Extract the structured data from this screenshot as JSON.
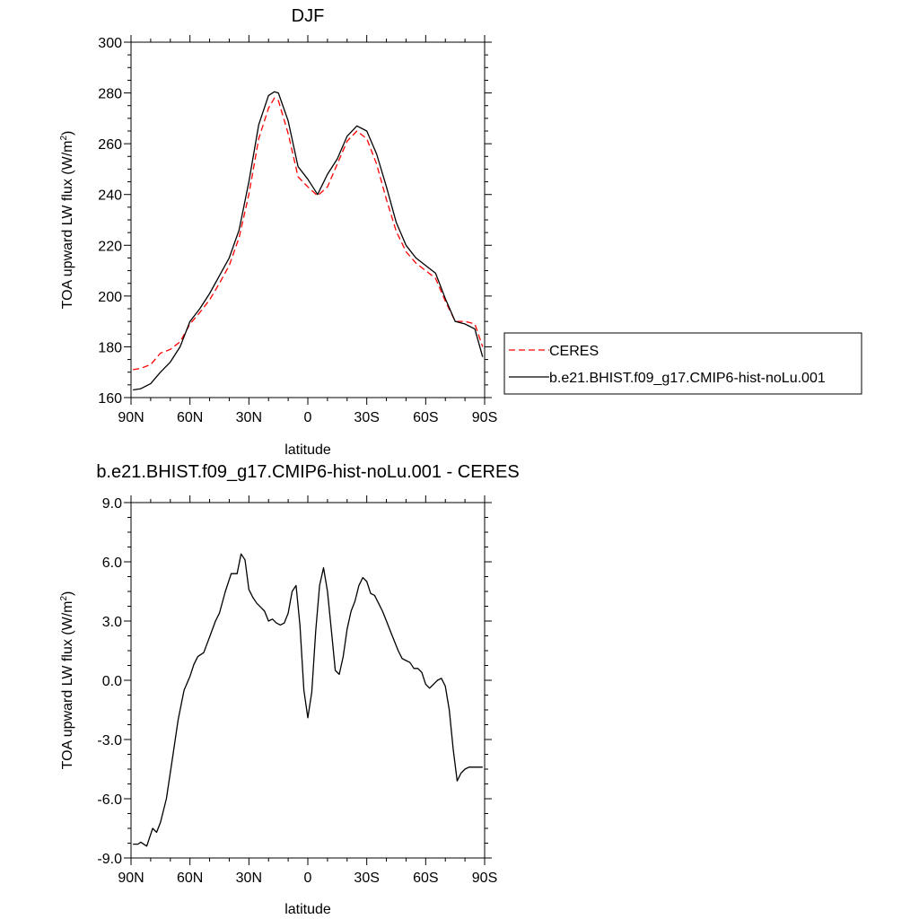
{
  "chart_data": [
    {
      "type": "line",
      "title": "DJF",
      "xlabel": "latitude",
      "ylabel": "TOA upward LW flux (W/m²)",
      "ylabel_parts": {
        "main": "TOA upward LW flux (W/m",
        "sup": "2",
        "close": ")"
      },
      "xlim": [
        90,
        -90
      ],
      "ylim": [
        160,
        300
      ],
      "x_ticks": [
        90,
        60,
        30,
        0,
        -30,
        -60,
        -90
      ],
      "x_tick_labels": [
        "90N",
        "60N",
        "30N",
        "0",
        "30S",
        "60S",
        "90S"
      ],
      "y_ticks": [
        160,
        180,
        200,
        220,
        240,
        260,
        280,
        300
      ],
      "y_tick_labels": [
        "160",
        "180",
        "200",
        "220",
        "240",
        "260",
        "280",
        "300"
      ],
      "legend_position": "right",
      "series": [
        {
          "name": "CERES",
          "color": "#ff0000",
          "dash": "dashed",
          "x": [
            89,
            85,
            80,
            75,
            70,
            65,
            60,
            55,
            50,
            45,
            40,
            35,
            30,
            25,
            20,
            17,
            15,
            10,
            5,
            0,
            -5,
            -10,
            -15,
            -20,
            -25,
            -30,
            -35,
            -40,
            -45,
            -50,
            -55,
            -60,
            -65,
            -70,
            -75,
            -80,
            -85,
            -89
          ],
          "y": [
            171,
            171.5,
            173,
            177.5,
            179,
            182,
            189,
            193.5,
            198.5,
            205,
            212,
            223,
            240,
            262,
            274,
            278,
            277,
            264,
            247,
            243,
            239.5,
            243,
            252,
            261,
            265,
            262,
            252,
            238,
            225.5,
            217.5,
            213,
            210,
            207,
            198,
            190,
            190,
            189,
            180
          ]
        },
        {
          "name": "b.e21.BHIST.f09_g17.CMIP6-hist-noLu.001",
          "color": "#000000",
          "dash": "solid",
          "x": [
            89,
            85,
            80,
            75,
            70,
            65,
            60,
            55,
            50,
            45,
            40,
            35,
            30,
            25,
            20,
            17,
            15,
            10,
            5,
            0,
            -5,
            -10,
            -15,
            -20,
            -25,
            -30,
            -35,
            -40,
            -45,
            -50,
            -55,
            -60,
            -65,
            -70,
            -75,
            -80,
            -85,
            -89
          ],
          "y": [
            163,
            163.5,
            165.5,
            170,
            174,
            180,
            190,
            195,
            201,
            208,
            215,
            226,
            245,
            267.5,
            279,
            280.5,
            280,
            269,
            251,
            246,
            240,
            248,
            254,
            263,
            267,
            265,
            256,
            243,
            229,
            220,
            215,
            212,
            209,
            199,
            190,
            189,
            187,
            176
          ]
        }
      ]
    },
    {
      "type": "line",
      "title": "b.e21.BHIST.f09_g17.CMIP6-hist-noLu.001 - CERES",
      "xlabel": "latitude",
      "ylabel": "TOA upward LW flux (W/m²)",
      "ylabel_parts": {
        "main": "TOA upward LW flux (W/m",
        "sup": "2",
        "close": ")"
      },
      "xlim": [
        90,
        -90
      ],
      "ylim": [
        -9,
        9
      ],
      "x_ticks": [
        90,
        60,
        30,
        0,
        -30,
        -60,
        -90
      ],
      "x_tick_labels": [
        "90N",
        "60N",
        "30N",
        "0",
        "30S",
        "60S",
        "90S"
      ],
      "y_ticks": [
        -9,
        -6,
        -3,
        0,
        3,
        6,
        9
      ],
      "y_tick_labels": [
        "-9.0",
        "-6.0",
        "-3.0",
        "0.0",
        "3.0",
        "6.0",
        "9.0"
      ],
      "series": [
        {
          "color": "#000000",
          "dash": "solid",
          "x": [
            89,
            86.5,
            85,
            82,
            79,
            77,
            75,
            72,
            69,
            66,
            63,
            60,
            58,
            56,
            53,
            50,
            47,
            45,
            42,
            39,
            36,
            34,
            32,
            30,
            28,
            26,
            24,
            22,
            20,
            18,
            16,
            14,
            12,
            10,
            8,
            6,
            4,
            2,
            0,
            -2,
            -4,
            -6,
            -8,
            -10,
            -12,
            -14,
            -16,
            -18,
            -20,
            -22,
            -24,
            -26,
            -28,
            -30,
            -32,
            -34,
            -36,
            -38,
            -40,
            -42,
            -44,
            -46,
            -48,
            -50,
            -52,
            -54,
            -56,
            -58,
            -60,
            -62,
            -64,
            -66,
            -68,
            -70,
            -72,
            -74,
            -76,
            -78,
            -80,
            -82,
            -84,
            -86,
            -88,
            -89
          ],
          "y": [
            -8.3,
            -8.3,
            -8.2,
            -8.4,
            -7.5,
            -7.7,
            -7.2,
            -6.0,
            -4.0,
            -2.0,
            -0.5,
            0.2,
            0.8,
            1.2,
            1.4,
            2.2,
            3.0,
            3.4,
            4.5,
            5.4,
            5.4,
            6.4,
            6.1,
            4.6,
            4.2,
            3.9,
            3.7,
            3.5,
            3.0,
            3.1,
            2.9,
            2.8,
            2.9,
            3.4,
            4.5,
            4.8,
            2.8,
            -0.5,
            -1.9,
            -0.6,
            2.5,
            4.8,
            5.7,
            4.5,
            2.5,
            0.5,
            0.3,
            1.2,
            2.6,
            3.5,
            4.0,
            4.8,
            5.2,
            5.0,
            4.4,
            4.3,
            3.9,
            3.5,
            3.0,
            2.5,
            2.0,
            1.5,
            1.1,
            1.0,
            0.9,
            0.6,
            0.6,
            0.4,
            -0.2,
            -0.4,
            -0.2,
            0.0,
            0.1,
            -0.3,
            -1.5,
            -3.5,
            -5.1,
            -4.7,
            -4.5,
            -4.4,
            -4.4,
            -4.4,
            -4.4,
            -4.4
          ]
        }
      ]
    }
  ]
}
